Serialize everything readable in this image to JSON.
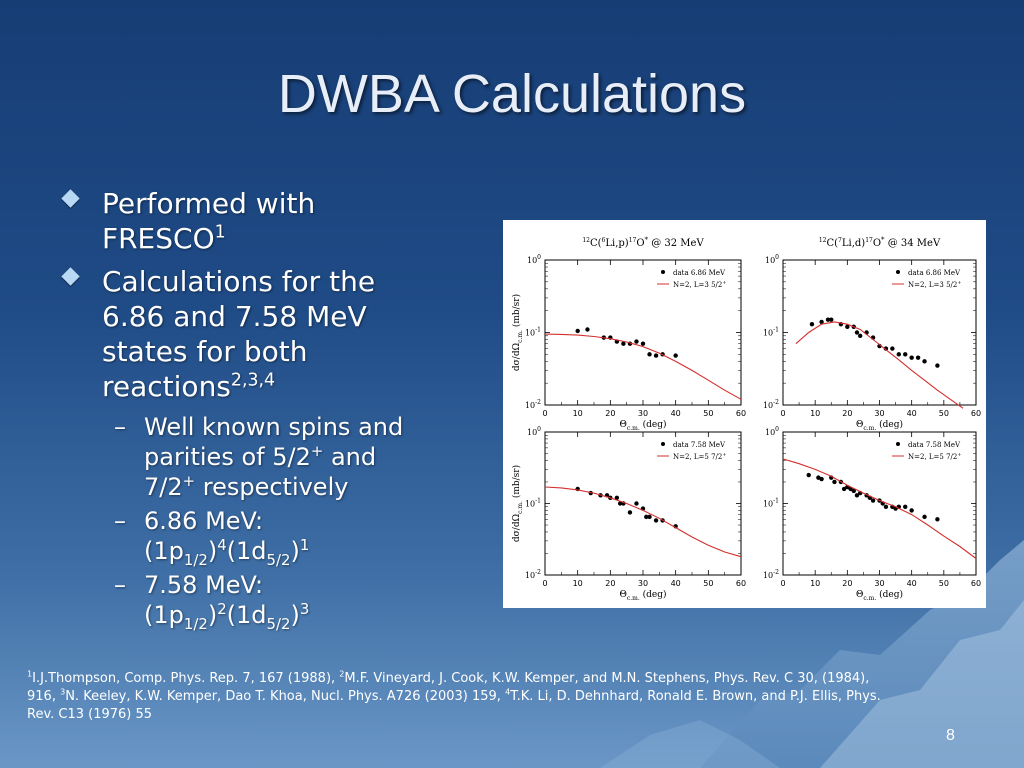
{
  "title": "DWBA Calculations",
  "bullets": {
    "b1_line1": "Performed with",
    "b1_line2": "FRESCO",
    "b1_sup": "1",
    "b2_line1": "Calculations for the",
    "b2_line2": "6.86 and 7.58 MeV",
    "b2_line3": "states for both",
    "b2_line4": "reactions",
    "b2_sup": "2,3,4",
    "dash": "–",
    "s1_line1": "Well known spins and",
    "s1_line2": "parities of 5/2",
    "s1_sup1": "+",
    "s1_mid": " and",
    "s1_line3": "7/2",
    "s1_sup2": "+",
    "s1_end": " respectively",
    "s2_line1": "6.86 MeV:",
    "s3_line1": "7.58 MeV:",
    "conf_open": "(1p",
    "conf_sub1": "1/2",
    "conf_close1": ")",
    "conf_mid": "(1d",
    "conf_sub2": "5/2",
    "conf_close2": ")",
    "s2_exp1": "4",
    "s2_exp2": "1",
    "s3_exp1": "2",
    "s3_exp2": "3"
  },
  "refs": {
    "r1": "1",
    "t1": "I.J.Thompson, Comp. Phys. Rep. 7, 167 (1988), ",
    "r2": "2",
    "t2": "M.F. Vineyard, J. Cook, K.W. Kemper, and M.N. Stephens, Phys. Rev. C 30, (1984), 916, ",
    "r3": "3",
    "t3": "N. Keeley, K.W. Kemper, Dao T. Khoa, Nucl. Phys. A726 (2003) 159, ",
    "r4": "4",
    "t4": "T.K. Li, D. Dehnhard, Ronald E. Brown, and P.J. Ellis, Phys. Rev. C13 (1976) 55"
  },
  "page_number": "8",
  "colors": {
    "fit_line": "#d42f2f",
    "points": "#000000"
  },
  "chart_data": [
    {
      "type": "scatter",
      "title": "12C(6Li,p)17O* @ 32 MeV",
      "title_parts": {
        "a1": "12",
        "a2": "C(",
        "a3": "6",
        "a4": "Li,p)",
        "a5": "17",
        "a6": "O",
        "a7": "*",
        "a8": " @ 32 MeV"
      },
      "xlabel": "Θc.m. (deg)",
      "ylabel": "dσ/dΩc.m. (mb/sr)",
      "xlim": [
        0,
        60
      ],
      "ylim": [
        0.01,
        1
      ],
      "yscale": "log",
      "xticks": [
        "0",
        "10",
        "20",
        "30",
        "40",
        "50",
        "60"
      ],
      "yticks": [
        {
          "base": "10",
          "exp": "0"
        },
        {
          "base": "10",
          "exp": "-1"
        },
        {
          "base": "10",
          "exp": "-2"
        }
      ],
      "legend": {
        "data": "data 6.86 MeV",
        "fit": "N=2, L=3 5/2",
        "fit_sup": "+",
        "position": "top-right"
      },
      "series": [
        {
          "name": "data 6.86 MeV",
          "x": [
            10,
            13,
            18,
            20,
            22,
            24,
            26,
            28,
            30,
            32,
            34,
            36,
            40
          ],
          "y": [
            0.105,
            0.11,
            0.085,
            0.085,
            0.075,
            0.07,
            0.07,
            0.075,
            0.07,
            0.05,
            0.048,
            0.05,
            0.048
          ]
        },
        {
          "name": "N=2, L=3 5/2+",
          "line": true,
          "x": [
            0,
            5,
            10,
            15,
            20,
            25,
            30,
            35,
            40,
            45,
            50,
            55,
            60
          ],
          "y": [
            0.095,
            0.094,
            0.092,
            0.088,
            0.082,
            0.074,
            0.064,
            0.052,
            0.04,
            0.03,
            0.022,
            0.016,
            0.012
          ]
        }
      ]
    },
    {
      "type": "scatter",
      "title": "12C(7Li,d)17O* @ 34 MeV",
      "title_parts": {
        "a1": "12",
        "a2": "C(",
        "a3": "7",
        "a4": "Li,d)",
        "a5": "17",
        "a6": "O",
        "a7": "*",
        "a8": " @ 34 MeV"
      },
      "xlabel": "Θc.m. (deg)",
      "ylabel": "",
      "xlim": [
        0,
        60
      ],
      "ylim": [
        0.01,
        1
      ],
      "yscale": "log",
      "xticks": [
        "0",
        "10",
        "20",
        "30",
        "40",
        "50",
        "60"
      ],
      "yticks": [
        {
          "base": "10",
          "exp": "0"
        },
        {
          "base": "10",
          "exp": "-1"
        },
        {
          "base": "10",
          "exp": "-2"
        }
      ],
      "legend": {
        "data": "data 6.86 MeV",
        "fit": "N=2, L=3 5/2",
        "fit_sup": "+",
        "position": "top-right"
      },
      "series": [
        {
          "name": "data 6.86 MeV",
          "x": [
            9,
            12,
            14,
            15,
            18,
            20,
            22,
            23,
            24,
            26,
            28,
            30,
            32,
            34,
            36,
            38,
            40,
            42,
            44,
            48
          ],
          "y": [
            0.13,
            0.14,
            0.15,
            0.15,
            0.13,
            0.12,
            0.12,
            0.1,
            0.09,
            0.1,
            0.085,
            0.065,
            0.06,
            0.06,
            0.05,
            0.05,
            0.045,
            0.045,
            0.04,
            0.035
          ]
        },
        {
          "name": "N=2, L=3 5/2+",
          "line": true,
          "x": [
            4,
            8,
            12,
            16,
            20,
            24,
            28,
            32,
            36,
            40,
            44,
            48,
            52,
            56
          ],
          "y": [
            0.07,
            0.1,
            0.13,
            0.14,
            0.13,
            0.11,
            0.08,
            0.058,
            0.042,
            0.03,
            0.022,
            0.016,
            0.012,
            0.009
          ]
        }
      ]
    },
    {
      "type": "scatter",
      "title": "",
      "xlabel": "Θc.m. (deg)",
      "ylabel": "dσ/dΩc.m. (mb/sr)",
      "xlim": [
        0,
        60
      ],
      "ylim": [
        0.01,
        1
      ],
      "yscale": "log",
      "xticks": [
        "0",
        "10",
        "20",
        "30",
        "40",
        "50",
        "60"
      ],
      "yticks": [
        {
          "base": "10",
          "exp": "0"
        },
        {
          "base": "10",
          "exp": "-1"
        },
        {
          "base": "10",
          "exp": "-2"
        }
      ],
      "legend": {
        "data": "data 7.58 MeV",
        "fit": "N=2, L=5 7/2",
        "fit_sup": "+",
        "position": "top-right"
      },
      "series": [
        {
          "name": "data 7.58 MeV",
          "x": [
            10,
            14,
            17,
            19,
            20,
            22,
            23,
            24,
            26,
            28,
            30,
            31,
            32,
            34,
            36,
            40
          ],
          "y": [
            0.16,
            0.14,
            0.13,
            0.13,
            0.12,
            0.12,
            0.1,
            0.1,
            0.075,
            0.1,
            0.085,
            0.065,
            0.065,
            0.058,
            0.058,
            0.048
          ]
        },
        {
          "name": "N=2, L=5 7/2+",
          "line": true,
          "x": [
            0,
            5,
            10,
            15,
            20,
            25,
            30,
            35,
            40,
            45,
            50,
            55,
            60
          ],
          "y": [
            0.17,
            0.165,
            0.155,
            0.14,
            0.12,
            0.1,
            0.08,
            0.062,
            0.046,
            0.034,
            0.026,
            0.021,
            0.018
          ]
        }
      ]
    },
    {
      "type": "scatter",
      "title": "",
      "xlabel": "Θc.m. (deg)",
      "ylabel": "",
      "xlim": [
        0,
        60
      ],
      "ylim": [
        0.01,
        1
      ],
      "yscale": "log",
      "xticks": [
        "0",
        "10",
        "20",
        "30",
        "40",
        "50",
        "60"
      ],
      "yticks": [
        {
          "base": "10",
          "exp": "0"
        },
        {
          "base": "10",
          "exp": "-1"
        },
        {
          "base": "10",
          "exp": "-2"
        }
      ],
      "legend": {
        "data": "data 7.58 MeV",
        "fit": "N=2, L=5 7/2",
        "fit_sup": "+",
        "position": "top-right"
      },
      "series": [
        {
          "name": "data 7.58 MeV",
          "x": [
            8,
            11,
            12,
            15,
            16,
            18,
            19,
            20,
            21,
            22,
            23,
            24,
            26,
            27,
            28,
            30,
            31,
            32,
            34,
            35,
            36,
            38,
            40,
            44,
            48
          ],
          "y": [
            0.25,
            0.23,
            0.22,
            0.23,
            0.2,
            0.2,
            0.16,
            0.17,
            0.16,
            0.15,
            0.13,
            0.14,
            0.13,
            0.12,
            0.11,
            0.11,
            0.1,
            0.09,
            0.09,
            0.085,
            0.09,
            0.09,
            0.08,
            0.065,
            0.06
          ]
        },
        {
          "name": "N=2, L=5 7/2+",
          "line": true,
          "x": [
            0,
            5,
            10,
            15,
            20,
            25,
            30,
            35,
            40,
            45,
            50,
            55,
            60
          ],
          "y": [
            0.42,
            0.36,
            0.3,
            0.24,
            0.18,
            0.14,
            0.11,
            0.09,
            0.07,
            0.05,
            0.035,
            0.025,
            0.017
          ]
        }
      ]
    }
  ]
}
